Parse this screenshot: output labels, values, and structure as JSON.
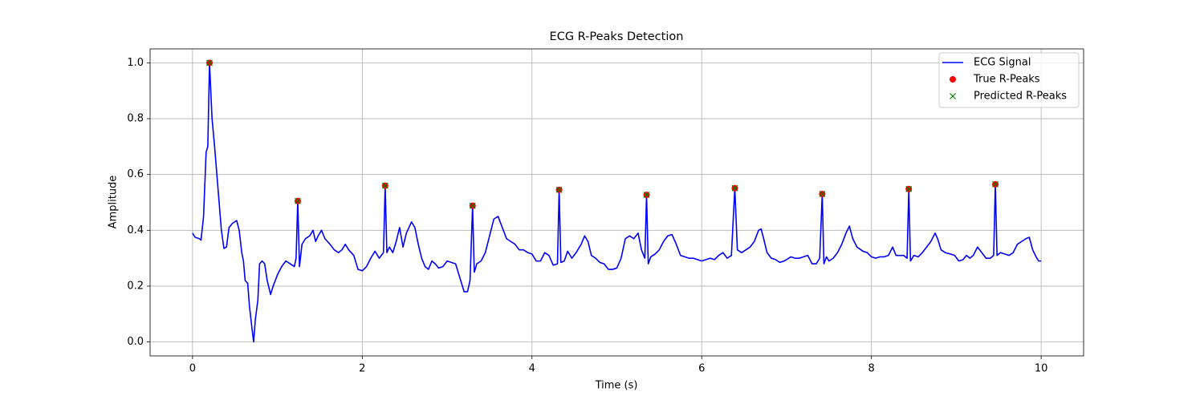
{
  "chart_data": {
    "type": "line",
    "title": "ECG R-Peaks Detection",
    "x_label": "Time (s)",
    "y_label": "Amplitude",
    "xlim": [
      -0.5,
      10.5
    ],
    "ylim": [
      -0.05,
      1.05
    ],
    "xticks": [
      0,
      2,
      4,
      6,
      8,
      10
    ],
    "yticks": [
      {
        "value": 0,
        "label": "0.0"
      },
      0.2,
      0.4,
      0.6,
      0.8,
      {
        "value": 1,
        "label": "1.0"
      }
    ],
    "grid": true,
    "legend": "upper right",
    "series": [
      {
        "name": "ECG Signal",
        "type": "line",
        "color": "#0000ff",
        "x": [
          0,
          0.03,
          0.08,
          0.1,
          0.13,
          0.16,
          0.18,
          0.2,
          0.23,
          0.26,
          0.3,
          0.34,
          0.37,
          0.4,
          0.43,
          0.47,
          0.52,
          0.55,
          0.58,
          0.6,
          0.62,
          0.65,
          0.67,
          0.7,
          0.72,
          0.74,
          0.77,
          0.79,
          0.82,
          0.85,
          0.88,
          0.92,
          0.95,
          1.0,
          1.05,
          1.1,
          1.15,
          1.2,
          1.22,
          1.24,
          1.26,
          1.29,
          1.33,
          1.38,
          1.42,
          1.45,
          1.48,
          1.52,
          1.56,
          1.62,
          1.67,
          1.72,
          1.76,
          1.8,
          1.84,
          1.9,
          1.95,
          2.0,
          2.05,
          2.1,
          2.15,
          2.2,
          2.25,
          2.27,
          2.29,
          2.32,
          2.36,
          2.4,
          2.44,
          2.48,
          2.52,
          2.58,
          2.62,
          2.66,
          2.7,
          2.74,
          2.78,
          2.82,
          2.86,
          2.9,
          2.95,
          3.0,
          3.05,
          3.1,
          3.15,
          3.2,
          3.24,
          3.27,
          3.3,
          3.32,
          3.35,
          3.4,
          3.45,
          3.5,
          3.55,
          3.6,
          3.65,
          3.7,
          3.75,
          3.8,
          3.85,
          3.9,
          3.95,
          4.0,
          4.05,
          4.1,
          4.15,
          4.2,
          4.25,
          4.3,
          4.32,
          4.34,
          4.38,
          4.42,
          4.47,
          4.52,
          4.58,
          4.62,
          4.66,
          4.7,
          4.75,
          4.8,
          4.85,
          4.9,
          4.95,
          5.0,
          5.05,
          5.1,
          5.15,
          5.2,
          5.25,
          5.29,
          5.33,
          5.35,
          5.37,
          5.4,
          5.45,
          5.5,
          5.55,
          5.6,
          5.65,
          5.7,
          5.75,
          5.8,
          5.85,
          5.9,
          5.95,
          6.0,
          6.05,
          6.1,
          6.15,
          6.2,
          6.25,
          6.3,
          6.35,
          6.39,
          6.42,
          6.47,
          6.52,
          6.57,
          6.62,
          6.67,
          6.7,
          6.73,
          6.77,
          6.82,
          6.87,
          6.92,
          6.97,
          7.0,
          7.05,
          7.1,
          7.15,
          7.2,
          7.25,
          7.3,
          7.35,
          7.39,
          7.42,
          7.44,
          7.47,
          7.5,
          7.55,
          7.6,
          7.65,
          7.7,
          7.74,
          7.78,
          7.83,
          7.9,
          7.95,
          8.0,
          8.05,
          8.1,
          8.15,
          8.2,
          8.25,
          8.29,
          8.33,
          8.38,
          8.42,
          8.44,
          8.46,
          8.5,
          8.55,
          8.6,
          8.65,
          8.7,
          8.75,
          8.78,
          8.82,
          8.87,
          8.93,
          8.98,
          9.03,
          9.08,
          9.12,
          9.16,
          9.2,
          9.25,
          9.3,
          9.35,
          9.4,
          9.44,
          9.46,
          9.48,
          9.52,
          9.57,
          9.62,
          9.67,
          9.72,
          9.77,
          9.82,
          9.86,
          9.9,
          9.94,
          9.97,
          10.0
        ],
        "values": [
          0.39,
          0.375,
          0.37,
          0.365,
          0.45,
          0.68,
          0.7,
          1.0,
          0.8,
          0.7,
          0.55,
          0.4,
          0.335,
          0.34,
          0.41,
          0.425,
          0.435,
          0.4,
          0.32,
          0.29,
          0.22,
          0.21,
          0.13,
          0.05,
          0.0,
          0.08,
          0.15,
          0.28,
          0.29,
          0.28,
          0.22,
          0.17,
          0.2,
          0.24,
          0.27,
          0.29,
          0.28,
          0.27,
          0.3,
          0.505,
          0.27,
          0.35,
          0.37,
          0.38,
          0.4,
          0.36,
          0.38,
          0.4,
          0.37,
          0.35,
          0.33,
          0.32,
          0.33,
          0.35,
          0.33,
          0.31,
          0.26,
          0.255,
          0.27,
          0.3,
          0.325,
          0.3,
          0.32,
          0.56,
          0.32,
          0.34,
          0.32,
          0.36,
          0.41,
          0.34,
          0.39,
          0.43,
          0.41,
          0.35,
          0.3,
          0.27,
          0.26,
          0.29,
          0.28,
          0.265,
          0.27,
          0.29,
          0.285,
          0.28,
          0.23,
          0.18,
          0.18,
          0.22,
          0.488,
          0.25,
          0.28,
          0.29,
          0.32,
          0.38,
          0.44,
          0.45,
          0.41,
          0.37,
          0.36,
          0.35,
          0.33,
          0.33,
          0.32,
          0.315,
          0.29,
          0.29,
          0.32,
          0.31,
          0.275,
          0.28,
          0.545,
          0.285,
          0.29,
          0.325,
          0.3,
          0.32,
          0.35,
          0.38,
          0.36,
          0.31,
          0.3,
          0.285,
          0.28,
          0.26,
          0.26,
          0.265,
          0.3,
          0.37,
          0.38,
          0.37,
          0.39,
          0.33,
          0.3,
          0.527,
          0.28,
          0.305,
          0.315,
          0.33,
          0.36,
          0.38,
          0.385,
          0.35,
          0.31,
          0.305,
          0.3,
          0.3,
          0.295,
          0.29,
          0.295,
          0.3,
          0.295,
          0.31,
          0.32,
          0.3,
          0.31,
          0.551,
          0.33,
          0.32,
          0.33,
          0.34,
          0.36,
          0.4,
          0.405,
          0.37,
          0.32,
          0.3,
          0.295,
          0.285,
          0.29,
          0.295,
          0.305,
          0.3,
          0.3,
          0.305,
          0.31,
          0.28,
          0.28,
          0.3,
          0.53,
          0.28,
          0.305,
          0.29,
          0.3,
          0.32,
          0.35,
          0.39,
          0.415,
          0.37,
          0.34,
          0.325,
          0.32,
          0.305,
          0.3,
          0.305,
          0.305,
          0.31,
          0.34,
          0.31,
          0.31,
          0.31,
          0.3,
          0.548,
          0.29,
          0.31,
          0.305,
          0.32,
          0.34,
          0.36,
          0.39,
          0.37,
          0.33,
          0.32,
          0.315,
          0.31,
          0.29,
          0.295,
          0.31,
          0.3,
          0.31,
          0.34,
          0.32,
          0.3,
          0.3,
          0.31,
          0.565,
          0.31,
          0.32,
          0.315,
          0.31,
          0.32,
          0.35,
          0.36,
          0.37,
          0.375,
          0.33,
          0.305,
          0.29,
          0.29
        ]
      },
      {
        "name": "True R-Peaks",
        "type": "scatter",
        "marker": "o",
        "color": "#ff0000",
        "x": [
          0.2,
          1.24,
          2.27,
          3.3,
          4.32,
          5.35,
          6.39,
          7.42,
          8.44,
          9.46
        ],
        "values": [
          1.0,
          0.505,
          0.56,
          0.488,
          0.545,
          0.527,
          0.551,
          0.53,
          0.548,
          0.565
        ]
      },
      {
        "name": "Predicted R-Peaks",
        "type": "scatter",
        "marker": "x",
        "color": "#008000",
        "x": [
          0.2,
          1.24,
          2.27,
          3.3,
          4.32,
          5.35,
          6.39,
          7.42,
          8.44,
          9.46
        ],
        "values": [
          1.0,
          0.505,
          0.56,
          0.488,
          0.545,
          0.527,
          0.551,
          0.53,
          0.548,
          0.565
        ]
      }
    ]
  }
}
